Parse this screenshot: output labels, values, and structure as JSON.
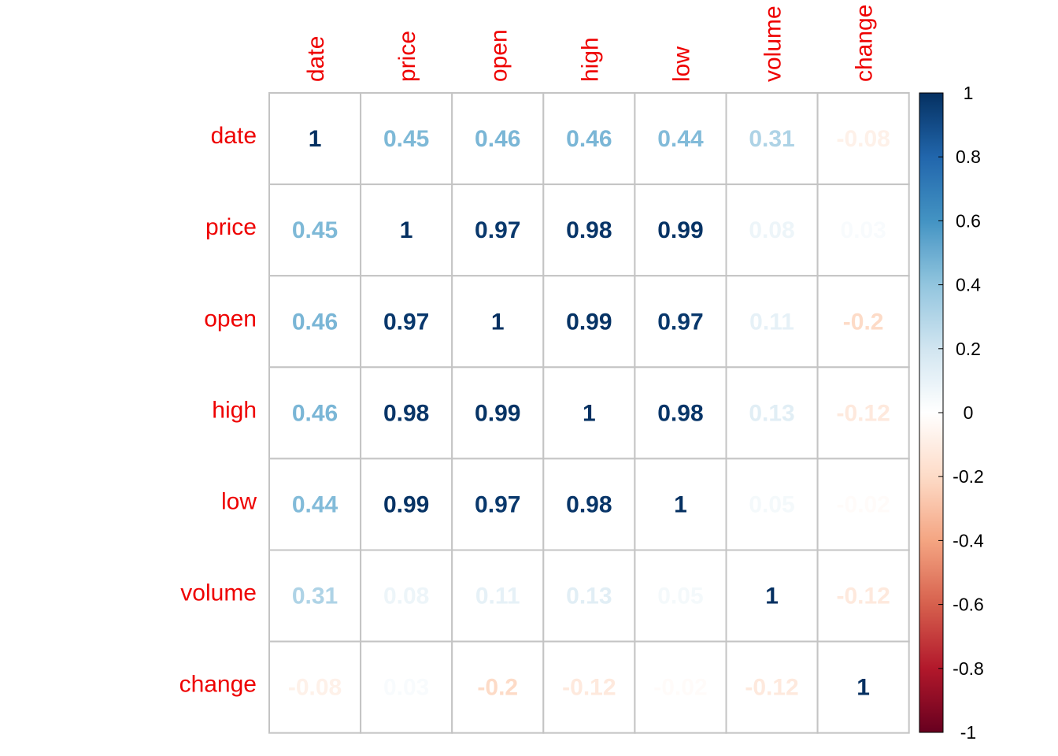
{
  "chart_data": {
    "type": "heatmap",
    "variables": [
      "date",
      "price",
      "open",
      "high",
      "low",
      "volume",
      "change"
    ],
    "matrix": [
      [
        1,
        0.45,
        0.46,
        0.46,
        0.44,
        0.31,
        -0.08
      ],
      [
        0.45,
        1,
        0.97,
        0.98,
        0.99,
        0.08,
        0.03
      ],
      [
        0.46,
        0.97,
        1,
        0.99,
        0.97,
        0.11,
        -0.2
      ],
      [
        0.46,
        0.98,
        0.99,
        1,
        0.98,
        0.13,
        -0.12
      ],
      [
        0.44,
        0.99,
        0.97,
        0.98,
        1,
        0.05,
        -0.02
      ],
      [
        0.31,
        0.08,
        0.11,
        0.13,
        0.05,
        1,
        -0.12
      ],
      [
        -0.08,
        0.03,
        -0.2,
        -0.12,
        -0.02,
        -0.12,
        1
      ]
    ],
    "colorbar": {
      "range": [
        -1,
        1
      ],
      "ticks": [
        "1",
        "0.8",
        "0.6",
        "0.4",
        "0.2",
        "0",
        "-0.2",
        "-0.4",
        "-0.6",
        "-0.8",
        "-1"
      ],
      "tick_values": [
        1,
        0.8,
        0.6,
        0.4,
        0.2,
        0,
        -0.2,
        -0.4,
        -0.6,
        -0.8,
        -1
      ],
      "colors": [
        "#67001F",
        "#B2182B",
        "#D6604D",
        "#F4A582",
        "#FDDBC7",
        "#FFFFFF",
        "#D1E5F0",
        "#92C5DE",
        "#4393C3",
        "#2166AC",
        "#053061"
      ]
    },
    "label_color": "#EE0000",
    "grid": true,
    "legend": "right"
  }
}
